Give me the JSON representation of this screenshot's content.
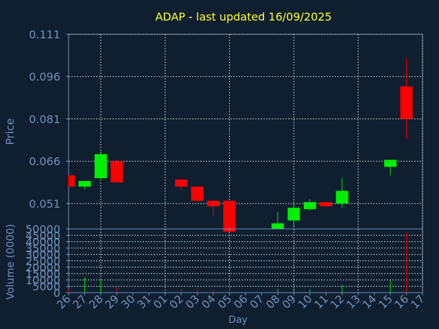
{
  "chart_data": {
    "type": "candlestick",
    "title": "ADAP - last updated 16/09/2025",
    "xlabel": "Day",
    "ylabel_price": "Price",
    "ylabel_volume": "Volume (0000)",
    "categories": [
      "26",
      "27",
      "28",
      "29",
      "30",
      "31",
      "01",
      "02",
      "03",
      "04",
      "05",
      "06",
      "07",
      "08",
      "09",
      "10",
      "11",
      "12",
      "13",
      "14",
      "15",
      "16",
      "17"
    ],
    "price_ylim": [
      0.042,
      0.111
    ],
    "price_ticks": [
      "0.111",
      "0.096",
      "0.081",
      "0.066",
      "0.051"
    ],
    "price_tick_values": [
      0.111,
      0.096,
      0.081,
      0.066,
      0.051
    ],
    "volume_ylim": [
      0,
      50000
    ],
    "volume_ticks": [
      "50000",
      "45000",
      "40000",
      "35000",
      "30000",
      "25000",
      "20000",
      "15000",
      "10000",
      "5000",
      "0"
    ],
    "volume_tick_values": [
      50000,
      45000,
      40000,
      35000,
      30000,
      25000,
      20000,
      15000,
      10000,
      5000,
      0
    ],
    "candles": [
      {
        "x": 0,
        "open": 0.061,
        "close": 0.057,
        "high": 0.061,
        "low": 0.057,
        "volume": 3000
      },
      {
        "x": 1,
        "open": 0.057,
        "close": 0.059,
        "high": 0.059,
        "low": 0.056,
        "volume": 12000
      },
      {
        "x": 2,
        "open": 0.06,
        "close": 0.0685,
        "high": 0.0695,
        "low": 0.059,
        "volume": 10000
      },
      {
        "x": 3,
        "open": 0.066,
        "close": 0.0585,
        "high": 0.0665,
        "low": 0.0585,
        "volume": 4000
      },
      {
        "x": 7,
        "open": 0.0595,
        "close": 0.057,
        "high": 0.0595,
        "low": 0.056,
        "volume": 2500
      },
      {
        "x": 8,
        "open": 0.057,
        "close": 0.052,
        "high": 0.057,
        "low": 0.052,
        "volume": 3500
      },
      {
        "x": 9,
        "open": 0.052,
        "close": 0.05,
        "high": 0.052,
        "low": 0.0465,
        "volume": 3000
      },
      {
        "x": 10,
        "open": 0.052,
        "close": 0.041,
        "high": 0.052,
        "low": 0.041,
        "volume": 4500
      },
      {
        "x": 13,
        "open": 0.042,
        "close": 0.044,
        "high": 0.048,
        "low": 0.042,
        "volume": 3000
      },
      {
        "x": 14,
        "open": 0.045,
        "close": 0.0495,
        "high": 0.052,
        "low": 0.043,
        "volume": 3500
      },
      {
        "x": 15,
        "open": 0.049,
        "close": 0.0515,
        "high": 0.0525,
        "low": 0.0485,
        "volume": 2500
      },
      {
        "x": 16,
        "open": 0.0515,
        "close": 0.05,
        "high": 0.0515,
        "low": 0.05,
        "volume": 1000
      },
      {
        "x": 17,
        "open": 0.051,
        "close": 0.0555,
        "high": 0.06,
        "low": 0.0495,
        "volume": 6000
      },
      {
        "x": 20,
        "open": 0.064,
        "close": 0.0665,
        "high": 0.0665,
        "low": 0.061,
        "volume": 9500
      },
      {
        "x": 21,
        "open": 0.0925,
        "close": 0.081,
        "high": 0.1025,
        "low": 0.074,
        "volume": 47000
      }
    ],
    "grid": true,
    "colors": {
      "background": "#0f1f30",
      "grid": "#c8c8c8",
      "axis": "#6f93bb",
      "title": "#ffff33",
      "up": "#00ee00",
      "down": "#ff0000"
    }
  }
}
